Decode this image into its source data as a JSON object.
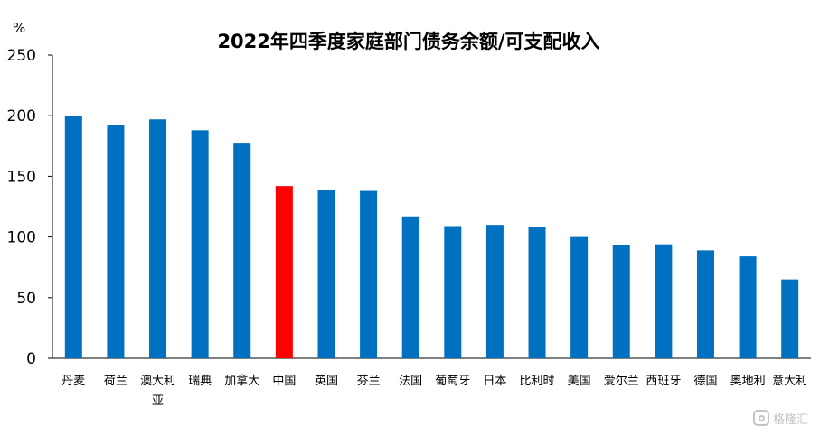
{
  "chart_data": {
    "type": "bar",
    "title": "2022年四季度家庭部门债务余额/可支配收入",
    "ylabel": "%",
    "xlabel": "",
    "ylim": [
      0,
      250
    ],
    "yticks": [
      0,
      50,
      100,
      150,
      200,
      250
    ],
    "grid": false,
    "categories": [
      "丹麦",
      "荷兰",
      "澳大利亚",
      "瑞典",
      "加拿大",
      "中国",
      "英国",
      "芬兰",
      "法国",
      "葡萄牙",
      "日本",
      "比利时",
      "美国",
      "爱尔兰",
      "西班牙",
      "德国",
      "奥地利",
      "意大利"
    ],
    "values": [
      200,
      192,
      197,
      188,
      177,
      142,
      139,
      138,
      117,
      109,
      110,
      108,
      100,
      93,
      94,
      89,
      84,
      65
    ],
    "colors": {
      "default": "#0070C0",
      "highlight": "#FF0000",
      "highlight_category": "中国"
    }
  },
  "watermark": {
    "icon": "gelonghui-logo-icon",
    "text": "格隆汇"
  }
}
